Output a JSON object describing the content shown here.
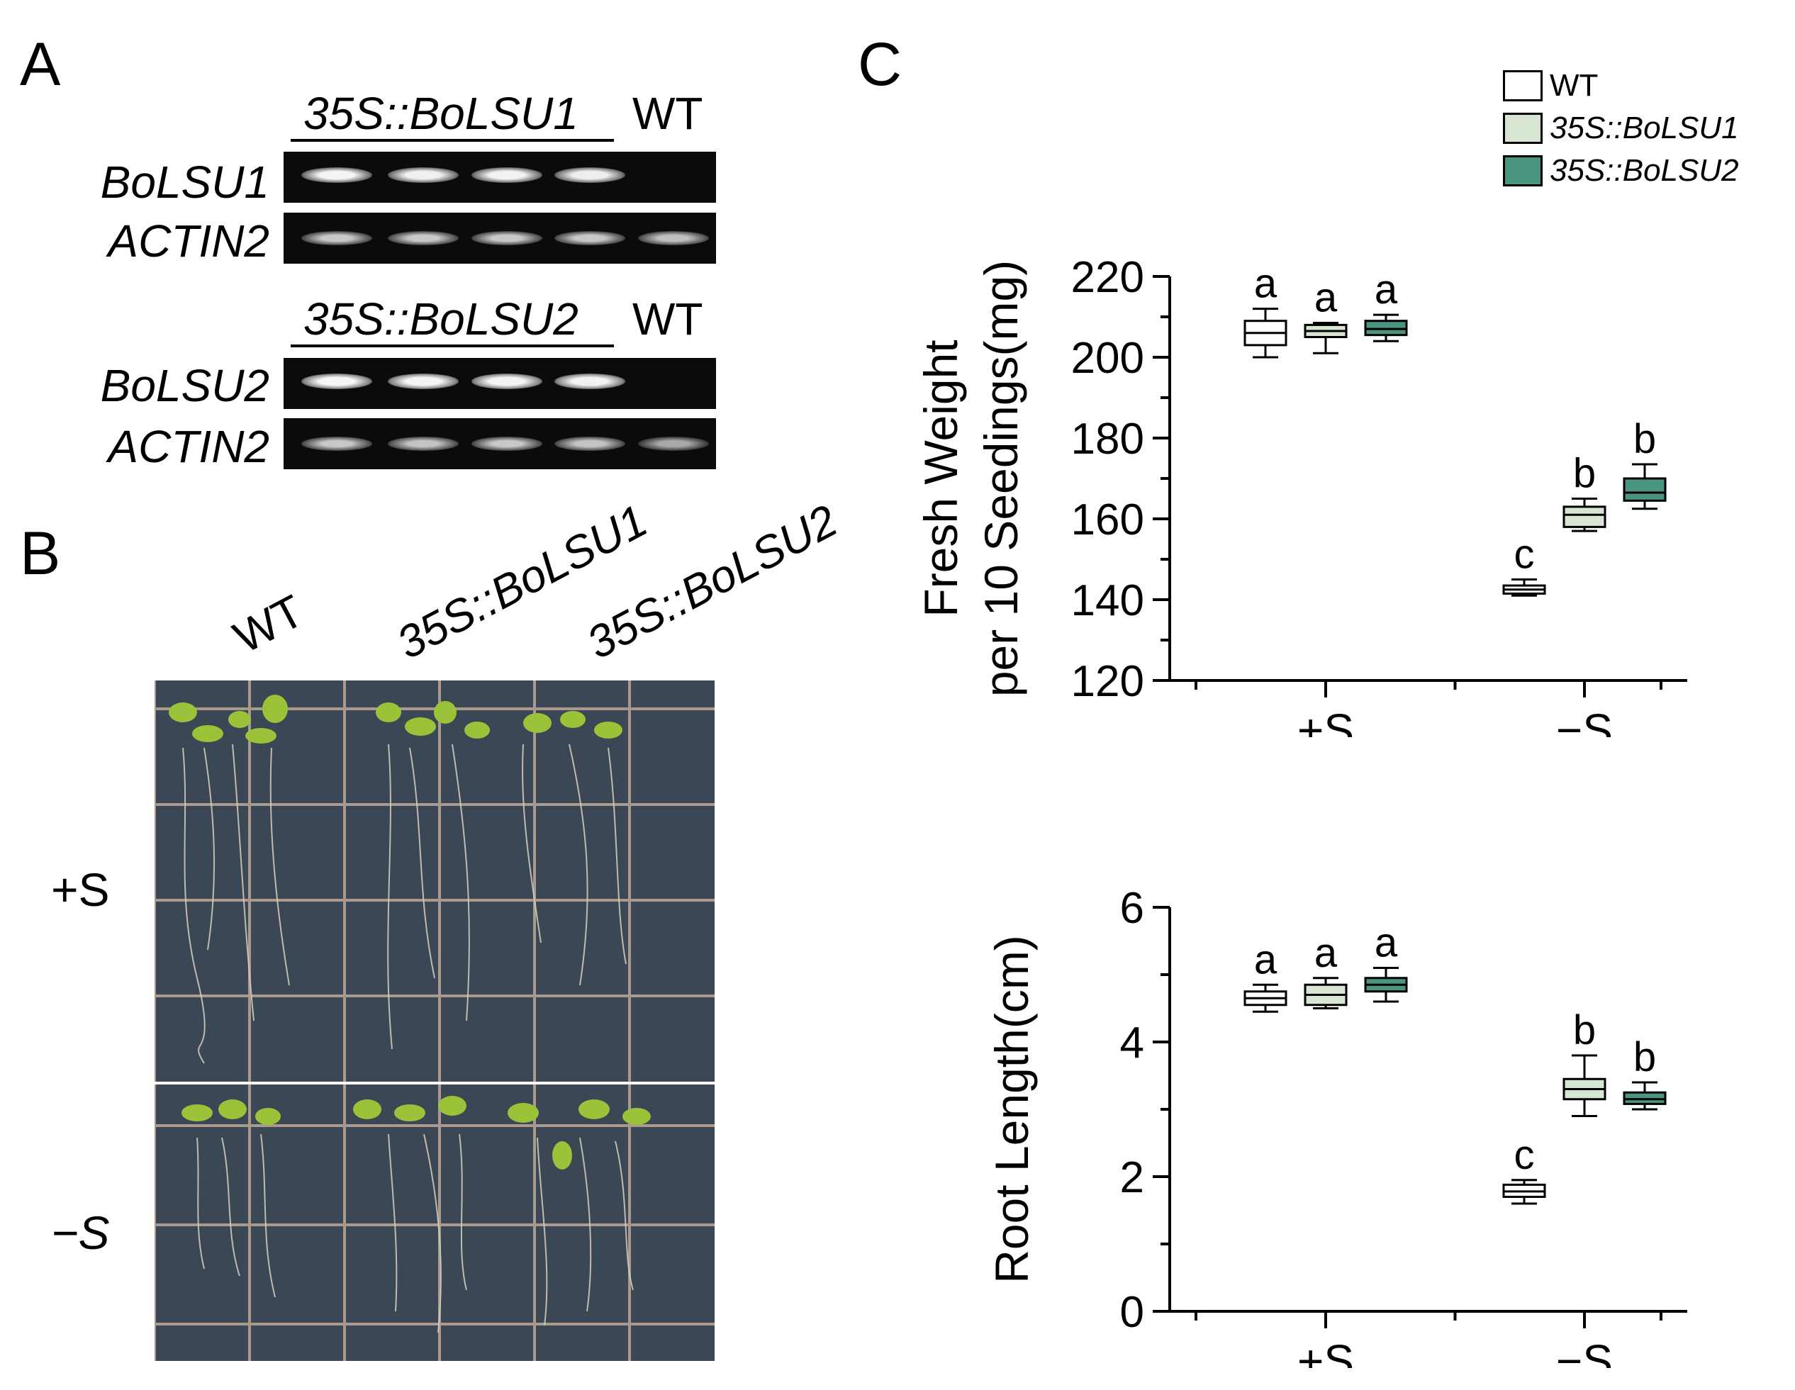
{
  "panels": {
    "a": "A",
    "b": "B",
    "c": "C"
  },
  "gel": {
    "top_title": "35S::BoLSU1",
    "top_wt": "WT",
    "bottom_title": "35S::BoLSU2",
    "bottom_wt": "WT",
    "rows": [
      "BoLSU1",
      "ACTIN2",
      "BoLSU2",
      "ACTIN2"
    ]
  },
  "photo": {
    "columns": [
      "WT",
      "35S::BoLSU1",
      "35S::BoLSU2"
    ],
    "conditions": [
      "+S",
      "−S"
    ]
  },
  "legend": [
    {
      "label": "WT",
      "color": "#ffffff"
    },
    {
      "label": "35S::BoLSU1",
      "color": "#d7e6d3"
    },
    {
      "label": "35S::BoLSU2",
      "color": "#4a9482"
    }
  ],
  "chart_data": [
    {
      "type": "box",
      "ylabel_line1": "Fresh Weight",
      "ylabel_line2": "per 10 Seedings(mg)",
      "categories": [
        "+S",
        "−S"
      ],
      "yticks": [
        120,
        140,
        160,
        180,
        200,
        220
      ],
      "ylim": [
        120,
        220
      ],
      "series": [
        {
          "name": "WT",
          "boxes": [
            {
              "whislo": 200,
              "q1": 203,
              "med": 206,
              "q3": 209,
              "whishi": 212,
              "letter": "a"
            },
            {
              "whislo": 141,
              "q1": 141.5,
              "med": 142.5,
              "q3": 143.5,
              "whishi": 145,
              "letter": "c"
            }
          ]
        },
        {
          "name": "35S::BoLSU1",
          "boxes": [
            {
              "whislo": 201,
              "q1": 205,
              "med": 206.5,
              "q3": 208,
              "whishi": 208.5,
              "letter": "a"
            },
            {
              "whislo": 157,
              "q1": 158,
              "med": 161,
              "q3": 163,
              "whishi": 165,
              "letter": "b"
            }
          ]
        },
        {
          "name": "35S::BoLSU2",
          "boxes": [
            {
              "whislo": 204,
              "q1": 205.5,
              "med": 207,
              "q3": 209,
              "whishi": 210.5,
              "letter": "a"
            },
            {
              "whislo": 162.5,
              "q1": 164.5,
              "med": 166.5,
              "q3": 170,
              "whishi": 173.5,
              "letter": "b"
            }
          ]
        }
      ]
    },
    {
      "type": "box",
      "ylabel_line1": "Root Length(cm)",
      "ylabel_line2": "",
      "categories": [
        "+S",
        "−S"
      ],
      "yticks": [
        0,
        2,
        4,
        6
      ],
      "ylim": [
        0,
        6
      ],
      "series": [
        {
          "name": "WT",
          "boxes": [
            {
              "whislo": 4.45,
              "q1": 4.55,
              "med": 4.65,
              "q3": 4.75,
              "whishi": 4.85,
              "letter": "a"
            },
            {
              "whislo": 1.6,
              "q1": 1.7,
              "med": 1.78,
              "q3": 1.88,
              "whishi": 1.95,
              "letter": "c"
            }
          ]
        },
        {
          "name": "35S::BoLSU1",
          "boxes": [
            {
              "whislo": 4.5,
              "q1": 4.55,
              "med": 4.7,
              "q3": 4.85,
              "whishi": 4.95,
              "letter": "a"
            },
            {
              "whislo": 2.9,
              "q1": 3.15,
              "med": 3.3,
              "q3": 3.45,
              "whishi": 3.8,
              "letter": "b"
            }
          ]
        },
        {
          "name": "35S::BoLSU2",
          "boxes": [
            {
              "whislo": 4.6,
              "q1": 4.75,
              "med": 4.85,
              "q3": 4.95,
              "whishi": 5.1,
              "letter": "a"
            },
            {
              "whislo": 3.0,
              "q1": 3.08,
              "med": 3.15,
              "q3": 3.25,
              "whishi": 3.4,
              "letter": "b"
            }
          ]
        }
      ]
    }
  ]
}
